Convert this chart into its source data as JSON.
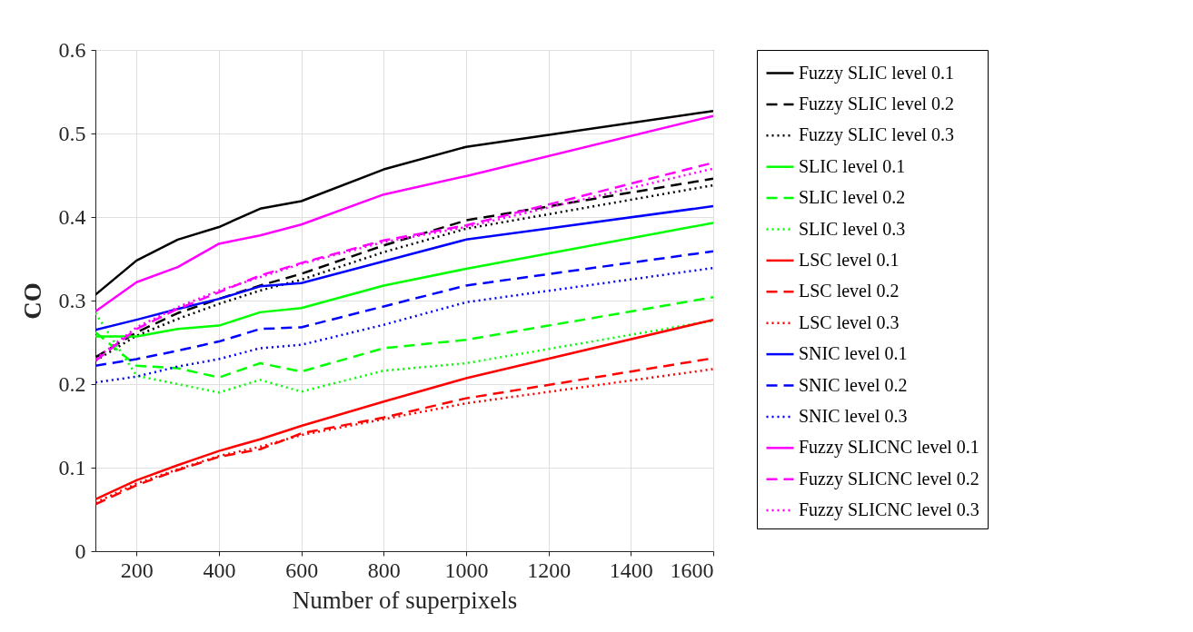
{
  "chart_data": {
    "type": "line",
    "xlabel": "Number of superpixels",
    "ylabel": "CO",
    "x": [
      100,
      200,
      300,
      400,
      500,
      600,
      800,
      1000,
      1600
    ],
    "xlim": [
      100,
      1600
    ],
    "ylim": [
      0,
      0.6
    ],
    "xticks": [
      200,
      400,
      600,
      800,
      1000,
      1200,
      1400,
      1600
    ],
    "yticks": [
      0,
      0.1,
      0.2,
      0.3,
      0.4,
      0.5,
      0.6
    ],
    "grid": true,
    "legend": "right",
    "series": [
      {
        "name": "Fuzzy SLIC level 0.1",
        "color": "#000000",
        "line_style": "solid",
        "values": [
          0.307,
          0.348,
          0.373,
          0.388,
          0.41,
          0.419,
          0.457,
          0.484,
          0.527
        ]
      },
      {
        "name": "Fuzzy SLIC level 0.2",
        "color": "#000000",
        "line_style": "dashed",
        "values": [
          0.232,
          0.262,
          0.285,
          0.302,
          0.318,
          0.332,
          0.366,
          0.396,
          0.446
        ]
      },
      {
        "name": "Fuzzy SLIC level 0.3",
        "color": "#000000",
        "line_style": "dotted",
        "values": [
          0.228,
          0.258,
          0.278,
          0.296,
          0.312,
          0.325,
          0.358,
          0.386,
          0.438
        ]
      },
      {
        "name": "SLIC level 0.1",
        "color": "#00ff00",
        "line_style": "solid",
        "values": [
          0.257,
          0.257,
          0.266,
          0.27,
          0.286,
          0.291,
          0.318,
          0.338,
          0.393
        ]
      },
      {
        "name": "SLIC level 0.2",
        "color": "#00ff00",
        "line_style": "dashed",
        "values": [
          0.262,
          0.222,
          0.219,
          0.208,
          0.225,
          0.215,
          0.243,
          0.253,
          0.304
        ]
      },
      {
        "name": "SLIC level 0.3",
        "color": "#00ff00",
        "line_style": "dotted",
        "values": [
          0.285,
          0.21,
          0.2,
          0.19,
          0.205,
          0.191,
          0.216,
          0.225,
          0.276
        ]
      },
      {
        "name": "LSC level 0.1",
        "color": "#ff0000",
        "line_style": "solid",
        "values": [
          0.062,
          0.085,
          0.103,
          0.12,
          0.134,
          0.15,
          0.179,
          0.207,
          0.277
        ]
      },
      {
        "name": "LSC level 0.2",
        "color": "#ff0000",
        "line_style": "dashed",
        "values": [
          0.056,
          0.079,
          0.097,
          0.113,
          0.122,
          0.141,
          0.16,
          0.183,
          0.231
        ]
      },
      {
        "name": "LSC level 0.3",
        "color": "#ff0000",
        "line_style": "dotted",
        "values": [
          0.058,
          0.081,
          0.098,
          0.114,
          0.125,
          0.139,
          0.158,
          0.177,
          0.218
        ]
      },
      {
        "name": "SNIC level 0.1",
        "color": "#0000ff",
        "line_style": "solid",
        "values": [
          0.265,
          0.277,
          0.29,
          0.302,
          0.317,
          0.321,
          0.347,
          0.373,
          0.413
        ]
      },
      {
        "name": "SNIC level 0.2",
        "color": "#0000ff",
        "line_style": "dashed",
        "values": [
          0.222,
          0.23,
          0.24,
          0.251,
          0.266,
          0.268,
          0.293,
          0.318,
          0.359
        ]
      },
      {
        "name": "SNIC level 0.3",
        "color": "#0000ff",
        "line_style": "dotted",
        "values": [
          0.202,
          0.209,
          0.221,
          0.23,
          0.243,
          0.247,
          0.271,
          0.298,
          0.339
        ]
      },
      {
        "name": "Fuzzy SLICNC level 0.1",
        "color": "#ff00ff",
        "line_style": "solid",
        "values": [
          0.287,
          0.322,
          0.34,
          0.368,
          0.378,
          0.391,
          0.427,
          0.449,
          0.521
        ]
      },
      {
        "name": "Fuzzy SLICNC level 0.2",
        "color": "#ff00ff",
        "line_style": "dashed",
        "values": [
          0.228,
          0.266,
          0.29,
          0.31,
          0.33,
          0.345,
          0.372,
          0.39,
          0.465
        ]
      },
      {
        "name": "Fuzzy SLICNC level 0.3",
        "color": "#ff00ff",
        "line_style": "dotted",
        "values": [
          0.23,
          0.268,
          0.292,
          0.312,
          0.328,
          0.344,
          0.37,
          0.388,
          0.458
        ]
      }
    ]
  }
}
